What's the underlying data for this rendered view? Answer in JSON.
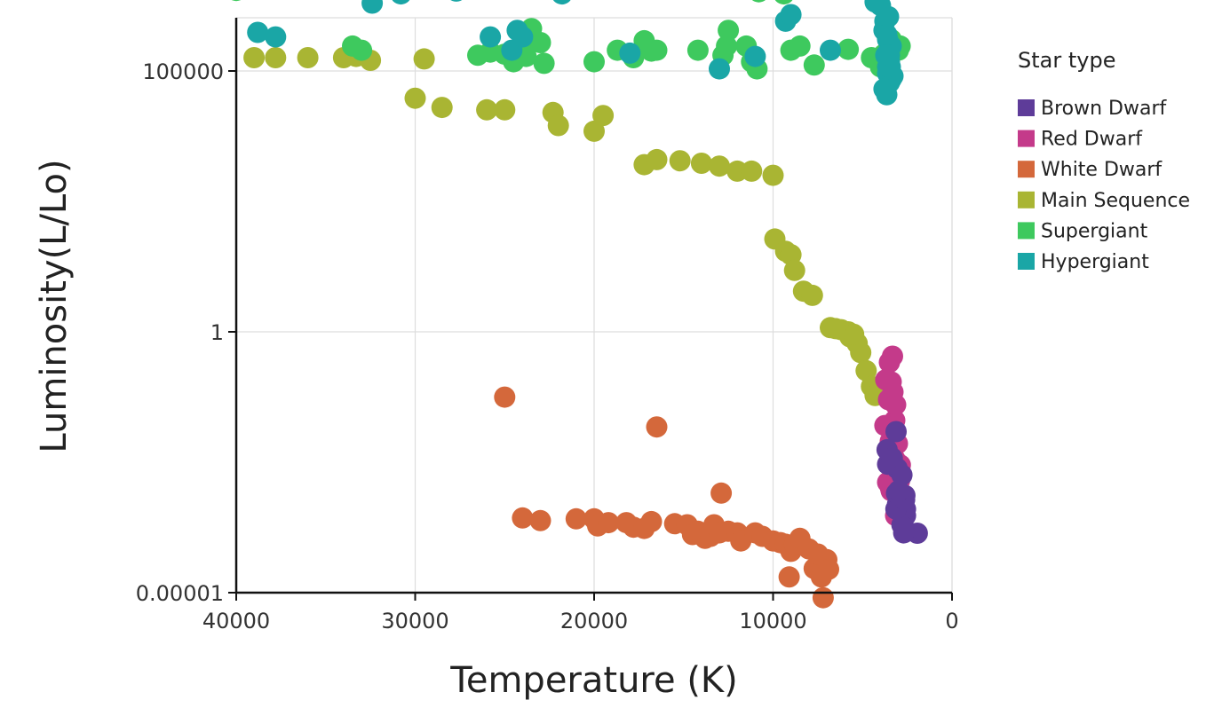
{
  "chart_data": {
    "type": "scatter",
    "title": "",
    "xlabel": "Temperature (K)",
    "ylabel": "Luminosity(L/Lo)",
    "x_scale": "linear",
    "x_reversed": true,
    "xlim": [
      0,
      40000
    ],
    "x_ticks": [
      40000,
      30000,
      20000,
      10000,
      0
    ],
    "x_tick_labels": [
      "40000",
      "30000",
      "20000",
      "10000",
      "0"
    ],
    "y_scale": "log",
    "ylim": [
      1e-05,
      2000000
    ],
    "y_ticks": [
      1e-05,
      1,
      100000
    ],
    "y_tick_labels": [
      "0.00001",
      "1",
      "100000"
    ],
    "grid": true,
    "legend_title": "Star type",
    "legend_position": "right",
    "series": [
      {
        "name": "Brown Dwarf",
        "color": "#5e3c99",
        "points": [
          [
            3068,
            0.0024
          ],
          [
            3042,
            0.0005
          ],
          [
            2600,
            0.0003
          ],
          [
            2800,
            0.0002
          ],
          [
            1939,
            0.000138
          ],
          [
            2840,
            0.00065
          ],
          [
            2637,
            0.00073
          ],
          [
            2600,
            0.0004
          ],
          [
            2650,
            0.00069
          ],
          [
            2700,
            0.00018
          ],
          [
            3600,
            0.0029
          ],
          [
            3129,
            0.0122
          ],
          [
            3134,
            0.0004
          ],
          [
            3628,
            0.0055
          ],
          [
            2650,
            0.0006
          ],
          [
            3340,
            0.0038
          ],
          [
            2799,
            0.0018
          ],
          [
            2700,
            0.00014
          ],
          [
            3100,
            0.0008
          ],
          [
            2980,
            0.0009
          ]
        ]
      },
      {
        "name": "Red Dwarf",
        "color": "#c43a8a",
        "points": [
          [
            3500,
            0.26
          ],
          [
            3324,
            0.34
          ],
          [
            3400,
            0.11
          ],
          [
            3550,
            0.05
          ],
          [
            3192,
            0.0036
          ],
          [
            3341,
            0.0056
          ],
          [
            3432,
            0.001
          ],
          [
            2983,
            0.0024
          ],
          [
            2935,
            0.0014
          ],
          [
            3300,
            0.07
          ],
          [
            3200,
            0.02
          ],
          [
            3600,
            0.015
          ],
          [
            3450,
            0.008
          ],
          [
            3150,
            0.04
          ],
          [
            3050,
            0.0072
          ],
          [
            3700,
            0.12
          ],
          [
            3150,
            0.0003
          ],
          [
            2890,
            0.0028
          ],
          [
            3200,
            0.0011
          ],
          [
            3400,
            0.0009
          ],
          [
            3600,
            0.0013
          ],
          [
            3295,
            0.00098
          ],
          [
            3750,
            0.016
          ],
          [
            3400,
            0.0012
          ]
        ]
      },
      {
        "name": "White Dwarf",
        "color": "#d4683b",
        "points": [
          [
            25000,
            0.056
          ],
          [
            24000,
            0.00027
          ],
          [
            23000,
            0.00024
          ],
          [
            21000,
            0.00026
          ],
          [
            20000,
            0.00026
          ],
          [
            19800,
            0.00019
          ],
          [
            19200,
            0.00022
          ],
          [
            18200,
            0.00022
          ],
          [
            17800,
            0.00018
          ],
          [
            17200,
            0.00017
          ],
          [
            16800,
            0.00023
          ],
          [
            16500,
            0.015
          ],
          [
            15500,
            0.00021
          ],
          [
            14800,
            0.0002
          ],
          [
            14500,
            0.00013
          ],
          [
            14200,
            0.00015
          ],
          [
            13800,
            0.00011
          ],
          [
            13500,
            0.00012
          ],
          [
            13300,
            0.0002
          ],
          [
            13000,
            0.00014
          ],
          [
            12900,
            0.00081
          ],
          [
            12500,
            0.00015
          ],
          [
            12000,
            0.00014
          ],
          [
            11800,
            9.8e-05
          ],
          [
            11000,
            0.00014
          ],
          [
            10600,
            0.00012
          ],
          [
            10000,
            9.8e-05
          ],
          [
            9600,
            9.1e-05
          ],
          [
            9300,
            8.5e-05
          ],
          [
            9100,
            2e-05
          ],
          [
            9000,
            6.2e-05
          ],
          [
            8800,
            8.5e-05
          ],
          [
            8500,
            0.00011
          ],
          [
            8000,
            6.9e-05
          ],
          [
            7700,
            2.9e-05
          ],
          [
            7500,
            5.5e-05
          ],
          [
            7300,
            2e-05
          ],
          [
            7200,
            8e-06
          ],
          [
            7000,
            4.3e-05
          ],
          [
            6900,
            2.8e-05
          ]
        ]
      },
      {
        "name": "Main Sequence",
        "color": "#a9b533",
        "points": [
          [
            39000,
            180000
          ],
          [
            37800,
            180000
          ],
          [
            36000,
            180000
          ],
          [
            34000,
            180000
          ],
          [
            33300,
            190000
          ],
          [
            32500,
            160000
          ],
          [
            29500,
            170000
          ],
          [
            30000,
            30000
          ],
          [
            28500,
            20000
          ],
          [
            26000,
            18000
          ],
          [
            25000,
            18000
          ],
          [
            22300,
            16000
          ],
          [
            22000,
            9000
          ],
          [
            20000,
            7000
          ],
          [
            19500,
            14000
          ],
          [
            17200,
            1600
          ],
          [
            16500,
            2000
          ],
          [
            15200,
            1900
          ],
          [
            14000,
            1700
          ],
          [
            13000,
            1500
          ],
          [
            12000,
            1200
          ],
          [
            11200,
            1200
          ],
          [
            10000,
            1000
          ],
          [
            9900,
            60
          ],
          [
            9300,
            35
          ],
          [
            9000,
            30
          ],
          [
            8800,
            15
          ],
          [
            8300,
            6
          ],
          [
            7800,
            5
          ],
          [
            6800,
            1.2
          ],
          [
            6200,
            1.1
          ],
          [
            5800,
            1
          ],
          [
            5700,
            0.8
          ],
          [
            5300,
            0.6
          ],
          [
            5100,
            0.4
          ],
          [
            4800,
            0.18
          ],
          [
            4500,
            0.09
          ],
          [
            4300,
            0.06
          ],
          [
            5500,
            0.9
          ],
          [
            6500,
            1.15
          ]
        ]
      },
      {
        "name": "Supergiant",
        "color": "#3ec95e",
        "points": [
          [
            40000,
            3500000
          ],
          [
            33500,
            300000
          ],
          [
            33000,
            250000
          ],
          [
            26500,
            200000
          ],
          [
            25800,
            230000
          ],
          [
            25000,
            210000
          ],
          [
            24500,
            150000
          ],
          [
            24000,
            300000
          ],
          [
            23800,
            190000
          ],
          [
            23500,
            650000
          ],
          [
            23000,
            350000
          ],
          [
            22800,
            140000
          ],
          [
            21800,
            3200000
          ],
          [
            20000,
            150000
          ],
          [
            18700,
            250000
          ],
          [
            17800,
            180000
          ],
          [
            17200,
            380000
          ],
          [
            16800,
            240000
          ],
          [
            16500,
            250000
          ],
          [
            14200,
            250000
          ],
          [
            12800,
            200000
          ],
          [
            12600,
            300000
          ],
          [
            12500,
            600000
          ],
          [
            11500,
            300000
          ],
          [
            11200,
            150000
          ],
          [
            10900,
            110000
          ],
          [
            10800,
            3300000
          ],
          [
            9900,
            4000000
          ],
          [
            9400,
            3000000
          ],
          [
            9000,
            250000
          ],
          [
            8500,
            300000
          ],
          [
            7700,
            130000
          ],
          [
            5800,
            260000
          ],
          [
            4500,
            180000
          ],
          [
            3800,
            210000
          ],
          [
            3500,
            190000
          ],
          [
            3200,
            280000
          ],
          [
            3000,
            250000
          ],
          [
            2900,
            300000
          ],
          [
            3600,
            150000
          ],
          [
            3400,
            400000
          ],
          [
            4000,
            120000
          ]
        ]
      },
      {
        "name": "Hypergiant",
        "color": "#1aa6a6",
        "points": [
          [
            38800,
            550000
          ],
          [
            37800,
            450000
          ],
          [
            32400,
            2000000
          ],
          [
            30800,
            3000000
          ],
          [
            27700,
            3400000
          ],
          [
            25800,
            450000
          ],
          [
            24600,
            250000
          ],
          [
            24300,
            600000
          ],
          [
            24000,
            450000
          ],
          [
            21800,
            3000000
          ],
          [
            18000,
            220000
          ],
          [
            13000,
            110000
          ],
          [
            11000,
            190000
          ],
          [
            9300,
            900000
          ],
          [
            9000,
            1200000
          ],
          [
            6800,
            250000
          ],
          [
            4300,
            2100000
          ],
          [
            4000,
            1800000
          ],
          [
            3800,
            600000
          ],
          [
            3600,
            400000
          ],
          [
            3500,
            150000
          ],
          [
            3400,
            300000
          ],
          [
            3700,
            200000
          ],
          [
            3600,
            90000
          ],
          [
            3500,
            60000
          ],
          [
            3400,
            70000
          ],
          [
            3450,
            120000
          ],
          [
            3750,
            900000
          ],
          [
            3550,
            1100000
          ],
          [
            3650,
            500000
          ],
          [
            3300,
            80000
          ],
          [
            3800,
            45000
          ],
          [
            3650,
            35000
          ],
          [
            3600,
            120000
          ],
          [
            3500,
            200000
          ]
        ]
      }
    ]
  }
}
